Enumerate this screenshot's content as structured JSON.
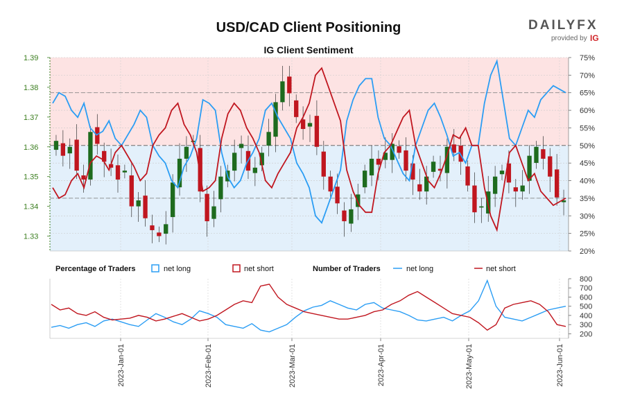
{
  "title": "USD/CAD Client Positioning",
  "subtitle": "IG Client Sentiment",
  "logo": {
    "text": "DAILYFX",
    "provided_by": "provided by",
    "brand": "IG"
  },
  "colors": {
    "long": "#2a9df4",
    "short": "#c0161f",
    "up": "#1e6b1e",
    "down": "#c0161f",
    "short_zone": "#fde3e3",
    "long_zone": "#e3f0fb"
  },
  "chart_data": [
    {
      "type": "candlestick+line",
      "name": "price-and-sentiment",
      "y_left": {
        "ticks": [
          "1.33",
          "1.34",
          "1.35",
          "1.36",
          "1.37",
          "1.38",
          "1.39"
        ],
        "range": [
          1.325,
          1.39
        ]
      },
      "y_right": {
        "ticks": [
          "20%",
          "25%",
          "30%",
          "35%",
          "40%",
          "45%",
          "50%",
          "55%",
          "60%",
          "65%",
          "70%",
          "75%"
        ],
        "range": [
          20,
          75
        ]
      },
      "net_long_pct": [
        62,
        65,
        64,
        60,
        58,
        62,
        55,
        53,
        54,
        57,
        52,
        50,
        53,
        56,
        60,
        58,
        50,
        47,
        45,
        40,
        38,
        44,
        47,
        52,
        63,
        62,
        60,
        48,
        41,
        38,
        40,
        45,
        48,
        52,
        60,
        62,
        58,
        55,
        52,
        45,
        42,
        38,
        30,
        28,
        33,
        38,
        43,
        57,
        63,
        67,
        69,
        69,
        58,
        52,
        50,
        46,
        42,
        40,
        50,
        55,
        60,
        62,
        58,
        53,
        47,
        48,
        45,
        50,
        50,
        62,
        70,
        74,
        63,
        52,
        50,
        55,
        60,
        58,
        63,
        65,
        67,
        66,
        65
      ],
      "net_short_pct": [
        38,
        35,
        36,
        40,
        42,
        38,
        45,
        47,
        46,
        43,
        48,
        50,
        47,
        44,
        40,
        42,
        50,
        53,
        55,
        60,
        62,
        56,
        53,
        48,
        37,
        38,
        40,
        52,
        59,
        62,
        60,
        55,
        52,
        48,
        40,
        38,
        42,
        45,
        48,
        55,
        58,
        62,
        70,
        72,
        67,
        62,
        57,
        43,
        37,
        33,
        31,
        31,
        42,
        48,
        50,
        54,
        58,
        60,
        50,
        45,
        40,
        38,
        42,
        47,
        53,
        52,
        55,
        50,
        50,
        38,
        30,
        26,
        37,
        48,
        50,
        45,
        40,
        42,
        37,
        35,
        33,
        34,
        35
      ],
      "candles_close": [
        1.362,
        1.357,
        1.36,
        1.352,
        1.349,
        1.365,
        1.361,
        1.355,
        1.353,
        1.349,
        1.352,
        1.34,
        1.342,
        1.336,
        1.332,
        1.33,
        1.334,
        1.348,
        1.356,
        1.36,
        1.362,
        1.345,
        1.335,
        1.34,
        1.35,
        1.352,
        1.358,
        1.361,
        1.352,
        1.353,
        1.358,
        1.365,
        1.375,
        1.382,
        1.378,
        1.37,
        1.366,
        1.368,
        1.36,
        1.35,
        1.345,
        1.341,
        1.335,
        1.339,
        1.344,
        1.352,
        1.356,
        1.354,
        1.358,
        1.361,
        1.358,
        1.352,
        1.349,
        1.345,
        1.35,
        1.355,
        1.352,
        1.36,
        1.358,
        1.355,
        1.347,
        1.338,
        1.34,
        1.345,
        1.35,
        1.352,
        1.348,
        1.345,
        1.347,
        1.357,
        1.36,
        1.356,
        1.35,
        1.343,
        1.342
      ]
    },
    {
      "type": "line",
      "name": "number-of-traders",
      "y_right": {
        "ticks": [
          "200",
          "300",
          "400",
          "500",
          "600",
          "700",
          "800"
        ],
        "range": [
          150,
          800
        ]
      },
      "x_ticks": [
        "2023-Jan-01",
        "2023-Feb-01",
        "2023-Mar-01",
        "2023-Apr-01",
        "2023-May-01",
        "2023-Jun-01"
      ],
      "series": [
        {
          "name": "net long",
          "values": [
            270,
            290,
            260,
            300,
            320,
            280,
            340,
            360,
            330,
            300,
            280,
            350,
            420,
            380,
            330,
            300,
            360,
            450,
            420,
            380,
            300,
            280,
            260,
            310,
            240,
            220,
            260,
            300,
            380,
            450,
            490,
            510,
            560,
            520,
            480,
            460,
            520,
            540,
            480,
            460,
            440,
            400,
            350,
            340,
            360,
            380,
            340,
            400,
            450,
            560,
            780,
            500,
            380,
            360,
            340,
            380,
            420,
            460,
            480,
            500
          ]
        },
        {
          "name": "net short",
          "values": [
            520,
            460,
            480,
            420,
            400,
            440,
            380,
            350,
            360,
            370,
            400,
            380,
            340,
            360,
            390,
            420,
            380,
            340,
            360,
            400,
            460,
            520,
            560,
            540,
            720,
            740,
            600,
            520,
            480,
            440,
            420,
            400,
            380,
            360,
            360,
            380,
            400,
            440,
            460,
            520,
            560,
            620,
            660,
            600,
            540,
            480,
            420,
            400,
            380,
            320,
            240,
            300,
            480,
            520,
            540,
            560,
            520,
            440,
            300,
            280
          ]
        }
      ]
    }
  ],
  "legend": {
    "pct_heading": "Percentage of Traders",
    "num_heading": "Number of Traders",
    "long": "net long",
    "short": "net short"
  }
}
